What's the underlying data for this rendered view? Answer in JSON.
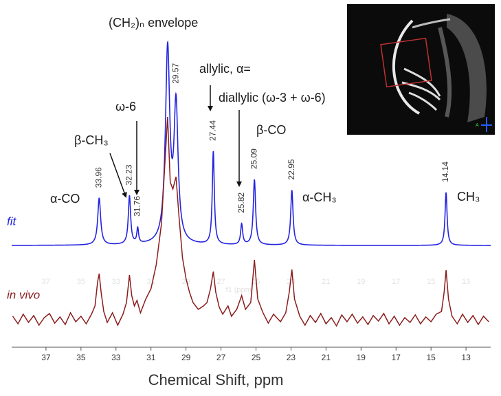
{
  "chart_data": {
    "type": "spectrum",
    "x_label": "Chemical Shift, ppm",
    "xlim": [
      38.96,
      11.59
    ],
    "xticks": [
      37,
      35,
      33,
      31,
      29,
      27,
      25,
      23,
      21,
      19,
      17,
      15,
      13
    ],
    "ghost_axis_label": "f1 (ppm)",
    "series": [
      {
        "name": "fit",
        "color": "#2323e0",
        "peaks": [
          {
            "ppm": 33.96,
            "height": 68,
            "half_width": 0.1
          },
          {
            "ppm": 32.23,
            "height": 70,
            "half_width": 0.08
          },
          {
            "ppm": 31.76,
            "height": 22,
            "half_width": 0.06
          },
          {
            "ppm": 29.57,
            "height": 195,
            "half_width": 0.14
          },
          {
            "ppm": 27.44,
            "height": 135,
            "half_width": 0.07
          },
          {
            "ppm": 25.82,
            "height": 30,
            "half_width": 0.07
          },
          {
            "ppm": 25.09,
            "height": 95,
            "half_width": 0.08
          },
          {
            "ppm": 22.95,
            "height": 80,
            "half_width": 0.08
          },
          {
            "ppm": 14.14,
            "height": 77,
            "half_width": 0.07
          }
        ],
        "envelope_peak": {
          "ppm": 30.05,
          "height": 280,
          "half_width": 0.15
        }
      },
      {
        "name": "in vivo",
        "color": "#8b1c1c",
        "x": [
          38.9,
          38.6,
          38.3,
          38.0,
          37.7,
          37.4,
          37.1,
          36.8,
          36.5,
          36.2,
          35.9,
          35.6,
          35.3,
          35.0,
          34.7,
          34.4,
          34.2,
          34.05,
          33.96,
          33.85,
          33.7,
          33.5,
          33.2,
          32.9,
          32.6,
          32.4,
          32.23,
          32.1,
          31.95,
          31.8,
          31.6,
          31.3,
          31.0,
          30.7,
          30.4,
          30.2,
          30.05,
          29.9,
          29.75,
          29.57,
          29.4,
          29.2,
          29.0,
          28.8,
          28.6,
          28.3,
          28.0,
          27.8,
          27.6,
          27.44,
          27.3,
          27.1,
          26.9,
          26.6,
          26.4,
          26.1,
          25.82,
          25.6,
          25.3,
          25.09,
          24.9,
          24.6,
          24.3,
          24.0,
          23.6,
          23.3,
          23.1,
          22.95,
          22.8,
          22.5,
          22.2,
          21.9,
          21.6,
          21.3,
          21.0,
          20.7,
          20.4,
          20.1,
          19.8,
          19.5,
          19.2,
          18.9,
          18.6,
          18.3,
          18.0,
          17.7,
          17.4,
          17.1,
          16.8,
          16.5,
          16.2,
          15.9,
          15.6,
          15.3,
          15.0,
          14.7,
          14.4,
          14.25,
          14.14,
          14.0,
          13.8,
          13.5,
          13.2,
          12.9,
          12.6,
          12.3,
          12.0,
          11.7
        ],
        "values": [
          5,
          -6,
          8,
          -4,
          6,
          -8,
          3,
          9,
          -5,
          4,
          -7,
          10,
          -3,
          5,
          -6,
          8,
          20,
          55,
          67,
          40,
          12,
          -4,
          10,
          -8,
          8,
          25,
          65,
          35,
          20,
          28,
          10,
          30,
          45,
          80,
          140,
          230,
          295,
          200,
          190,
          208,
          150,
          90,
          60,
          40,
          25,
          15,
          20,
          25,
          45,
          70,
          40,
          18,
          8,
          20,
          5,
          15,
          35,
          15,
          25,
          87,
          30,
          10,
          -5,
          8,
          -3,
          10,
          40,
          73,
          30,
          5,
          -8,
          6,
          -4,
          9,
          -6,
          3,
          -9,
          7,
          -3,
          8,
          -5,
          4,
          -7,
          6,
          -2,
          9,
          -6,
          5,
          -8,
          3,
          -4,
          7,
          -6,
          4,
          -3,
          8,
          12,
          40,
          72,
          30,
          5,
          -6,
          8,
          -4,
          6,
          -7,
          5,
          -3
        ]
      }
    ],
    "annotations": [
      "α-CO",
      "β-CH₃",
      "ω-6",
      "(CH₂)ₙ envelope",
      "allylic, α=",
      "diallylic (ω-3 + ω-6)",
      "β-CO",
      "α-CH₃",
      "CH₃"
    ]
  }
}
